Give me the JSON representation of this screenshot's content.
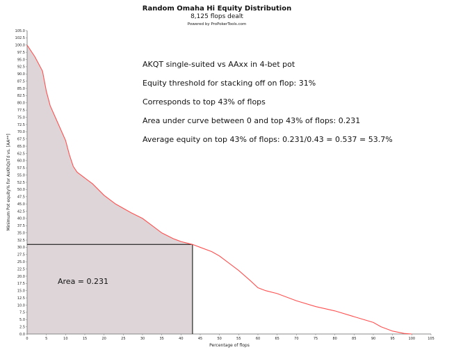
{
  "chart_data": {
    "type": "area",
    "title": "Random Omaha Hi Equity Distribution",
    "subtitle": "8,125 flops dealt",
    "credit": "Powered by ProPokerTools.com",
    "xlabel": "Percentage of flops",
    "ylabel": "Minimum Pot equity% for AsKhQsTd vs. [AA**]",
    "xlim": [
      0,
      105
    ],
    "ylim": [
      0,
      105
    ],
    "x_ticks": [
      0,
      5,
      10,
      15,
      20,
      25,
      30,
      35,
      40,
      45,
      50,
      55,
      60,
      65,
      70,
      75,
      80,
      85,
      90,
      95,
      100,
      105
    ],
    "y_ticks": [
      0,
      2.5,
      5,
      7.5,
      10,
      12.5,
      15,
      17.5,
      20,
      22.5,
      25,
      27.5,
      30,
      32.5,
      35,
      37.5,
      40,
      42.5,
      45,
      47.5,
      50,
      52.5,
      55,
      57.5,
      60,
      62.5,
      65,
      67.5,
      70,
      72.5,
      75,
      77.5,
      80,
      82.5,
      85,
      87.5,
      90,
      92.5,
      95,
      97.5,
      100,
      102.5,
      105
    ],
    "grid": false,
    "series": [
      {
        "color": "#ff5050",
        "x": [
          0,
          2,
          4,
          5,
          6,
          8,
          10,
          11,
          12,
          13,
          15,
          17,
          20,
          23,
          27,
          30,
          33,
          35,
          38,
          40,
          43,
          45,
          48,
          50,
          52,
          55,
          58,
          60,
          62,
          65,
          70,
          75,
          80,
          85,
          90,
          92,
          95,
          98,
          100
        ],
        "y": [
          100,
          96,
          91,
          84,
          79,
          73,
          67,
          62,
          58,
          56,
          54,
          52,
          48,
          45,
          42,
          40,
          37,
          35,
          33,
          32,
          31,
          30,
          28.5,
          27,
          25,
          22,
          18.5,
          16,
          15,
          14,
          11.5,
          9.5,
          8,
          6,
          4,
          2.5,
          1,
          0.2,
          0
        ]
      }
    ],
    "threshold": {
      "x": 43,
      "y": 31,
      "label": "Area = 0.231"
    },
    "annotations": [
      "AKQT single-suited vs AAxx in 4-bet pot",
      "Equity threshold for stacking off on flop: 31%",
      "Corresponds to top 43% of flops",
      "Area under curve between 0 and top 43% of flops: 0.231",
      "Average equity on top 43% of flops: 0.231/0.43 = 0.537 = 53.7%"
    ],
    "colors": {
      "curve": "#ff5050",
      "fill": "#ddd5d7",
      "threshold_line": "#000000",
      "axis": "#888888"
    }
  }
}
